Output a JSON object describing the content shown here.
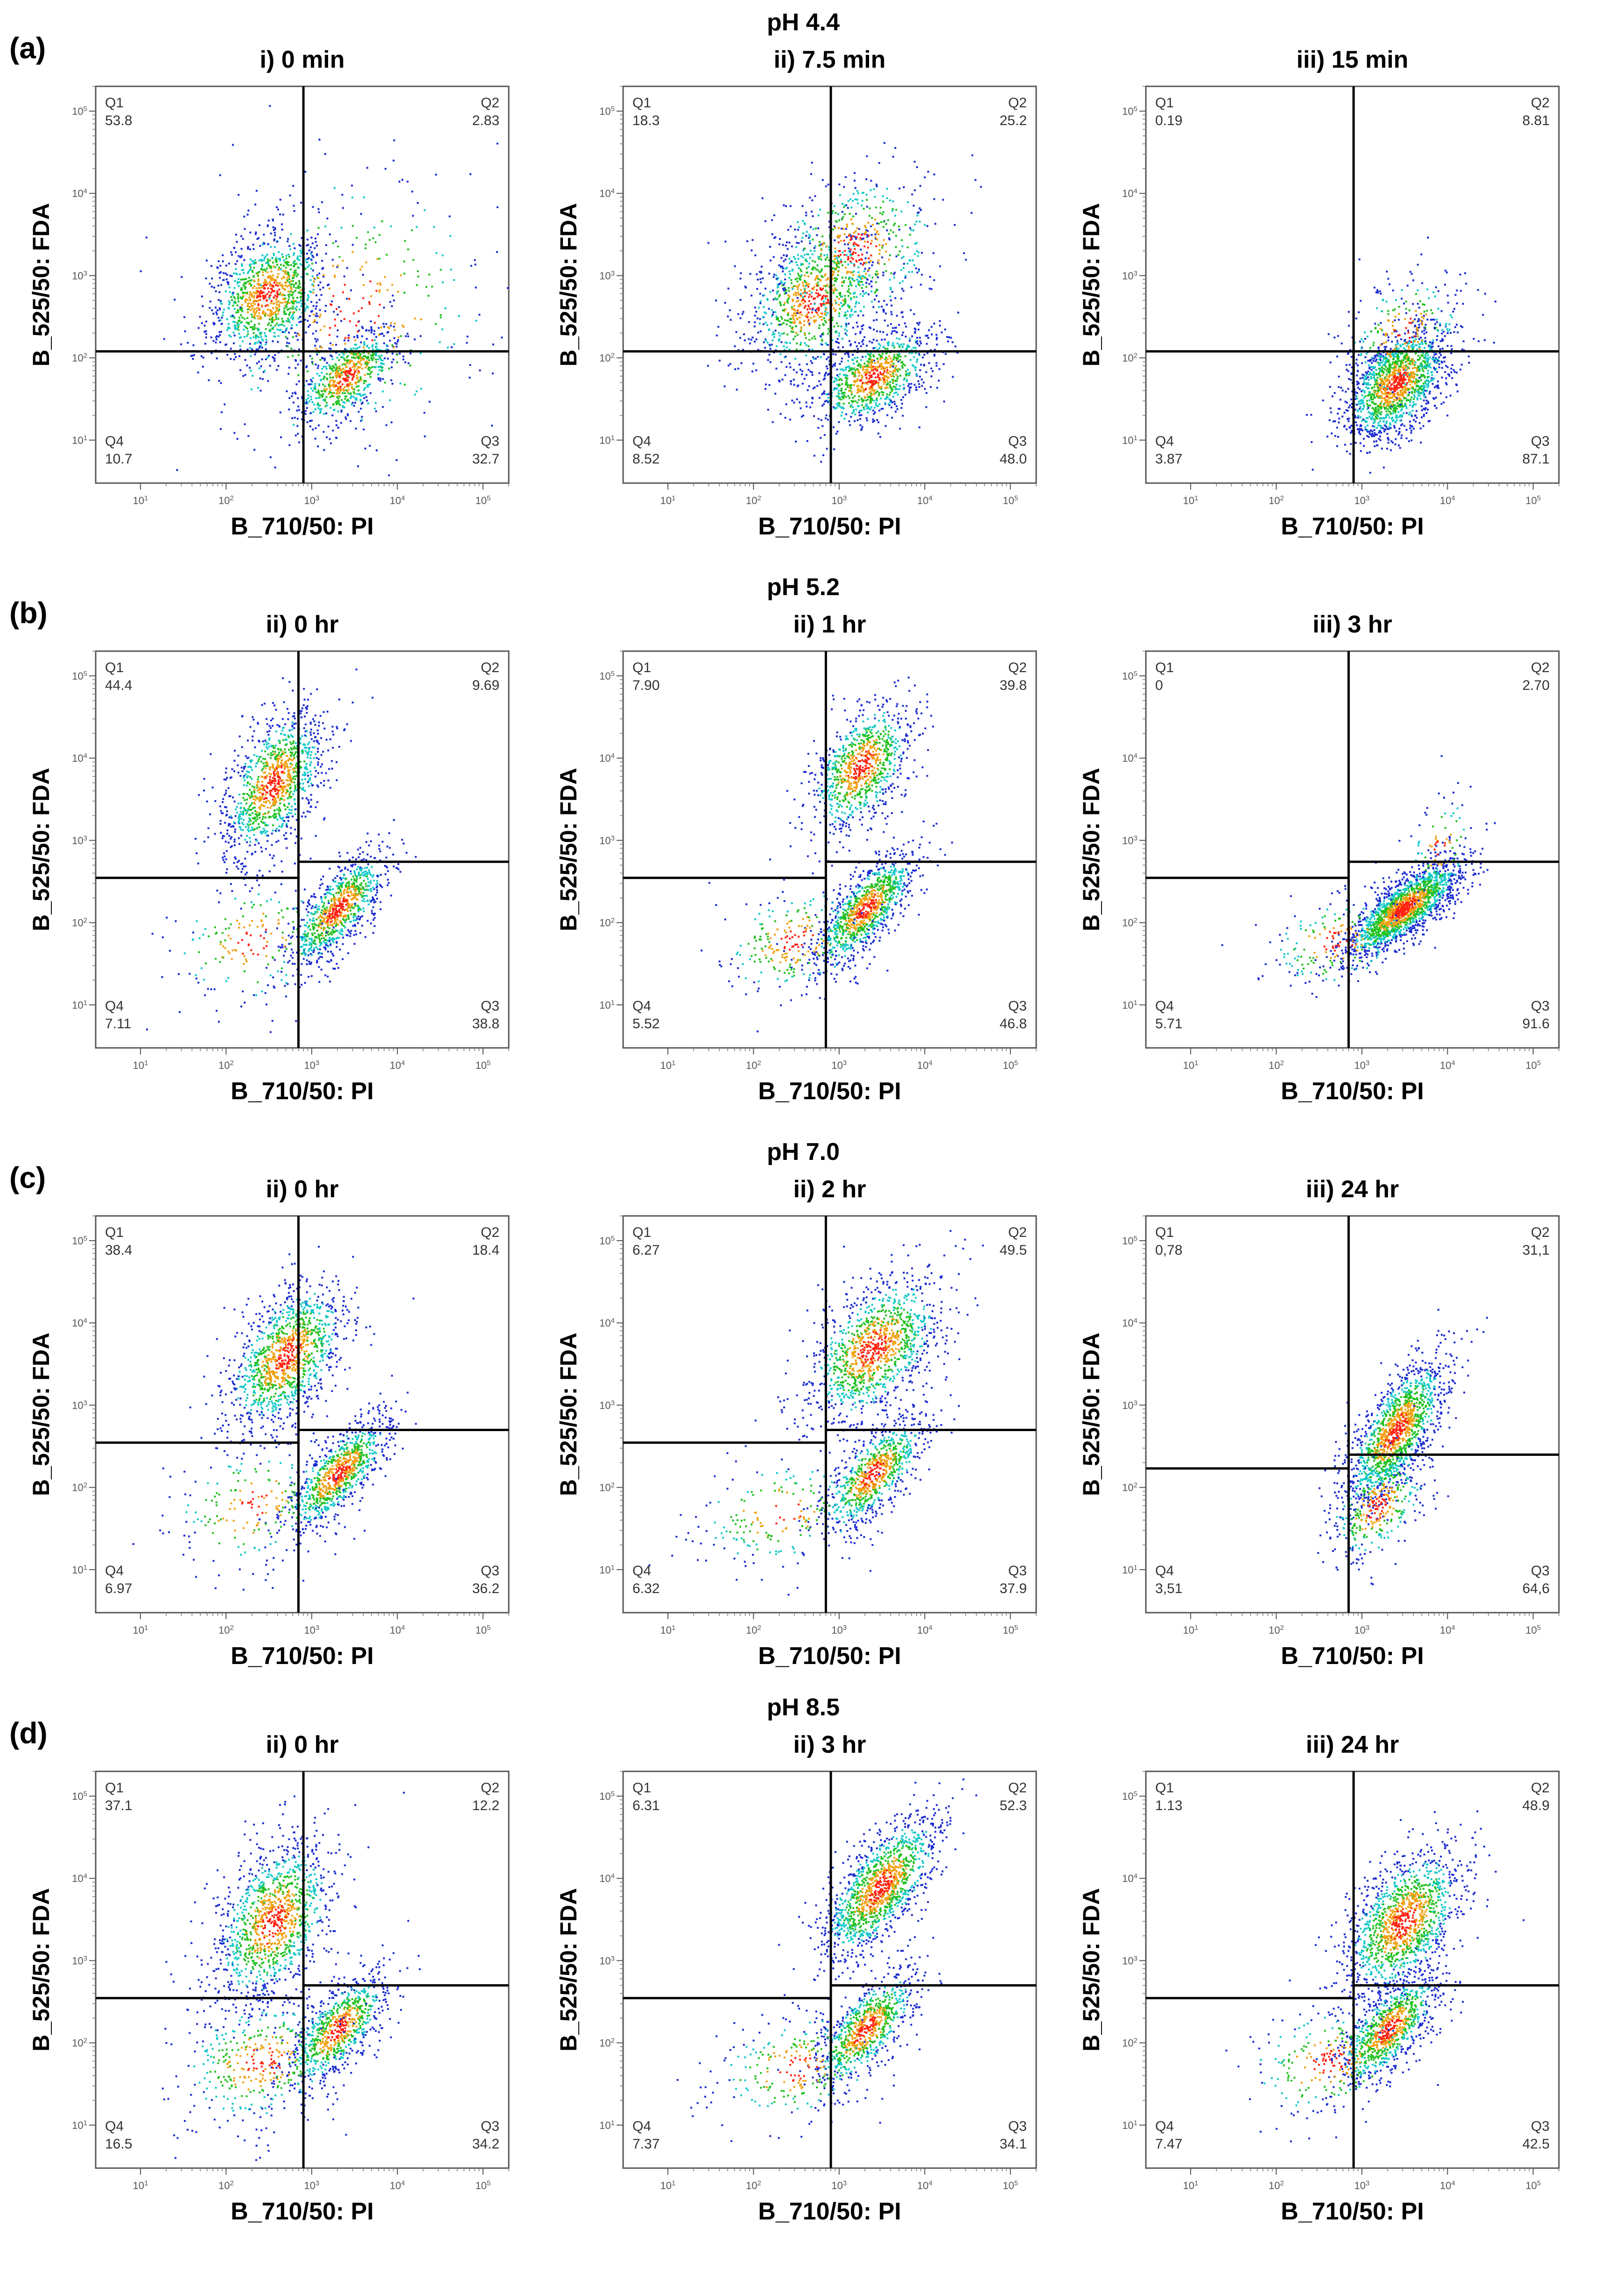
{
  "figure": {
    "x_axis_label": "B_710/50: PI",
    "y_axis_label": "B_525/50: FDA",
    "rows": [
      {
        "label": "(a)",
        "title": "pH 4.4"
      },
      {
        "label": "(b)",
        "title": "pH 5.2"
      },
      {
        "label": "(c)",
        "title": "pH 7.0"
      },
      {
        "label": "(d)",
        "title": "pH 8.5"
      }
    ],
    "colors": {
      "low": "#1a2bd0",
      "mid": "#14c8c8",
      "high": "#20c020",
      "peak": "#ff2010",
      "axis": "#000000"
    }
  },
  "chart_data": [
    {
      "type": "scatter",
      "row": "(a)",
      "title": "i) 0 min",
      "xlabel": "B_710/50: PI",
      "ylabel": "B_525/50: FDA",
      "scale": "log",
      "xlim": [
        3,
        200000
      ],
      "ylim": [
        3,
        200000
      ],
      "gates": {
        "x": 800,
        "y_left": 120,
        "y_right": 120
      },
      "quadrants": {
        "Q1": "53.8",
        "Q2": "2.83",
        "Q3": "32.7",
        "Q4": "10.7"
      },
      "populations": [
        {
          "x": [
            40,
            900
          ],
          "y": [
            50,
            8000
          ],
          "cx": 300,
          "cy": 600,
          "sx": 0.35,
          "sy": 0.4,
          "r": 0.3,
          "n": 1100
        },
        {
          "x": [
            700,
            20000
          ],
          "y": [
            10,
            400
          ],
          "cx": 2500,
          "cy": 60,
          "sx": 0.3,
          "sy": 0.3,
          "r": 0.6,
          "n": 700
        },
        {
          "cx": 3000,
          "cy": 400,
          "sx": 0.9,
          "sy": 0.9,
          "r": 0.1,
          "n": 350
        }
      ]
    },
    {
      "type": "scatter",
      "row": "(a)",
      "title": "ii) 7.5 min",
      "xlabel": "B_710/50: PI",
      "ylabel": "B_525/50: FDA",
      "scale": "log",
      "xlim": [
        3,
        200000
      ],
      "ylim": [
        3,
        200000
      ],
      "gates": {
        "x": 800,
        "y_left": 120,
        "y_right": 120
      },
      "quadrants": {
        "Q1": "18.3",
        "Q2": "25.2",
        "Q3": "48.0",
        "Q4": "8.52"
      },
      "populations": [
        {
          "cx": 500,
          "cy": 500,
          "sx": 0.4,
          "sy": 0.45,
          "r": 0.3,
          "n": 900
        },
        {
          "cx": 2500,
          "cy": 60,
          "sx": 0.35,
          "sy": 0.3,
          "r": 0.5,
          "n": 900
        },
        {
          "cx": 1500,
          "cy": 2000,
          "sx": 0.5,
          "sy": 0.5,
          "r": 0.2,
          "n": 500
        }
      ]
    },
    {
      "type": "scatter",
      "row": "(a)",
      "title": "iii) 15 min",
      "xlabel": "B_710/50: PI",
      "ylabel": "B_525/50: FDA",
      "scale": "log",
      "xlim": [
        3,
        200000
      ],
      "ylim": [
        3,
        200000
      ],
      "gates": {
        "x": 800,
        "y_left": 120,
        "y_right": 120
      },
      "quadrants": {
        "Q1": "0.19",
        "Q2": "8.81",
        "Q3": "87.1",
        "Q4": "3.87"
      },
      "populations": [
        {
          "cx": 2500,
          "cy": 50,
          "sx": 0.3,
          "sy": 0.35,
          "r": 0.5,
          "n": 1500
        },
        {
          "cx": 3000,
          "cy": 200,
          "sx": 0.35,
          "sy": 0.4,
          "r": 0.3,
          "n": 250
        }
      ]
    },
    {
      "type": "scatter",
      "row": "(b)",
      "title": "ii) 0 hr",
      "xlabel": "B_710/50: PI",
      "ylabel": "B_525/50: FDA",
      "scale": "log",
      "xlim": [
        3,
        200000
      ],
      "ylim": [
        3,
        200000
      ],
      "gates": {
        "x": 700,
        "y_left": 350,
        "y_right": 550
      },
      "quadrants": {
        "Q1": "44.4",
        "Q2": "9.69",
        "Q3": "38.8",
        "Q4": "7.11"
      },
      "populations": [
        {
          "cx": 350,
          "cy": 5000,
          "sx": 0.3,
          "sy": 0.45,
          "r": 0.5,
          "n": 1100
        },
        {
          "cx": 2000,
          "cy": 150,
          "sx": 0.3,
          "sy": 0.35,
          "r": 0.75,
          "n": 900
        },
        {
          "cx": 200,
          "cy": 60,
          "sx": 0.5,
          "sy": 0.4,
          "r": 0.2,
          "n": 200
        }
      ]
    },
    {
      "type": "scatter",
      "row": "(b)",
      "title": "ii) 1 hr",
      "xlabel": "B_710/50: PI",
      "ylabel": "B_525/50: FDA",
      "scale": "log",
      "xlim": [
        3,
        200000
      ],
      "ylim": [
        3,
        200000
      ],
      "gates": {
        "x": 700,
        "y_left": 350,
        "y_right": 550
      },
      "quadrants": {
        "Q1": "7.90",
        "Q2": "39.8",
        "Q3": "46.8",
        "Q4": "5.52"
      },
      "populations": [
        {
          "cx": 1800,
          "cy": 8000,
          "sx": 0.3,
          "sy": 0.4,
          "r": 0.5,
          "n": 900
        },
        {
          "cx": 2000,
          "cy": 150,
          "sx": 0.3,
          "sy": 0.35,
          "r": 0.75,
          "n": 1000
        },
        {
          "cx": 300,
          "cy": 60,
          "sx": 0.45,
          "sy": 0.35,
          "r": 0.2,
          "n": 250
        }
      ]
    },
    {
      "type": "scatter",
      "row": "(b)",
      "title": "iii) 3 hr",
      "xlabel": "B_710/50: PI",
      "ylabel": "B_525/50: FDA",
      "scale": "log",
      "xlim": [
        3,
        200000
      ],
      "ylim": [
        3,
        200000
      ],
      "gates": {
        "x": 700,
        "y_left": 350,
        "y_right": 550
      },
      "quadrants": {
        "Q1": "0",
        "Q2": "2.70",
        "Q3": "91.6",
        "Q4": "5.71"
      },
      "populations": [
        {
          "cx": 3000,
          "cy": 150,
          "sx": 0.35,
          "sy": 0.3,
          "r": 0.8,
          "n": 1700
        },
        {
          "cx": 500,
          "cy": 60,
          "sx": 0.45,
          "sy": 0.3,
          "r": 0.3,
          "n": 200
        },
        {
          "cx": 8000,
          "cy": 800,
          "sx": 0.2,
          "sy": 0.35,
          "r": 0.3,
          "n": 100
        }
      ]
    },
    {
      "type": "scatter",
      "row": "(c)",
      "title": "ii) 0 hr",
      "xlabel": "B_710/50: PI",
      "ylabel": "B_525/50: FDA",
      "scale": "log",
      "xlim": [
        3,
        200000
      ],
      "ylim": [
        3,
        200000
      ],
      "gates": {
        "x": 700,
        "y_left": 350,
        "y_right": 500
      },
      "quadrants": {
        "Q1": "38.4",
        "Q2": "18.4",
        "Q3": "36.2",
        "Q4": "6.97"
      },
      "populations": [
        {
          "cx": 500,
          "cy": 4000,
          "sx": 0.35,
          "sy": 0.45,
          "r": 0.5,
          "n": 1200
        },
        {
          "cx": 2000,
          "cy": 150,
          "sx": 0.3,
          "sy": 0.35,
          "r": 0.75,
          "n": 900
        },
        {
          "cx": 200,
          "cy": 60,
          "sx": 0.5,
          "sy": 0.4,
          "r": 0.2,
          "n": 200
        }
      ]
    },
    {
      "type": "scatter",
      "row": "(c)",
      "title": "ii) 2 hr",
      "xlabel": "B_710/50: PI",
      "ylabel": "B_525/50: FDA",
      "scale": "log",
      "xlim": [
        3,
        200000
      ],
      "ylim": [
        3,
        200000
      ],
      "gates": {
        "x": 700,
        "y_left": 350,
        "y_right": 500
      },
      "quadrants": {
        "Q1": "6.27",
        "Q2": "49.5",
        "Q3": "37.9",
        "Q4": "6.32"
      },
      "populations": [
        {
          "cx": 2500,
          "cy": 5000,
          "sx": 0.4,
          "sy": 0.45,
          "r": 0.5,
          "n": 1200
        },
        {
          "cx": 2500,
          "cy": 150,
          "sx": 0.3,
          "sy": 0.35,
          "r": 0.7,
          "n": 800
        },
        {
          "cx": 200,
          "cy": 50,
          "sx": 0.5,
          "sy": 0.35,
          "r": 0.2,
          "n": 200
        }
      ]
    },
    {
      "type": "scatter",
      "row": "(c)",
      "title": "iii) 24 hr",
      "xlabel": "B_710/50: PI",
      "ylabel": "B_525/50: FDA",
      "scale": "log",
      "xlim": [
        3,
        200000
      ],
      "ylim": [
        3,
        200000
      ],
      "gates": {
        "x": 700,
        "y_left": 170,
        "y_right": 250
      },
      "quadrants": {
        "Q1": "0,78",
        "Q2": "31,1",
        "Q3": "64,6",
        "Q4": "3,51"
      },
      "populations": [
        {
          "cx": 2500,
          "cy": 500,
          "sx": 0.3,
          "sy": 0.45,
          "r": 0.7,
          "n": 1400
        },
        {
          "cx": 1500,
          "cy": 60,
          "sx": 0.3,
          "sy": 0.35,
          "r": 0.5,
          "n": 350
        }
      ]
    },
    {
      "type": "scatter",
      "row": "(d)",
      "title": "ii) 0 hr",
      "xlabel": "B_710/50: PI",
      "ylabel": "B_525/50: FDA",
      "scale": "log",
      "xlim": [
        3,
        200000
      ],
      "ylim": [
        3,
        200000
      ],
      "gates": {
        "x": 800,
        "y_left": 350,
        "y_right": 500
      },
      "quadrants": {
        "Q1": "37.1",
        "Q2": "12.2",
        "Q3": "34.2",
        "Q4": "16.5"
      },
      "populations": [
        {
          "cx": 350,
          "cy": 3000,
          "sx": 0.35,
          "sy": 0.5,
          "r": 0.4,
          "n": 1200
        },
        {
          "cx": 2000,
          "cy": 150,
          "sx": 0.3,
          "sy": 0.35,
          "r": 0.7,
          "n": 800
        },
        {
          "cx": 250,
          "cy": 60,
          "sx": 0.5,
          "sy": 0.4,
          "r": 0.2,
          "n": 400
        }
      ]
    },
    {
      "type": "scatter",
      "row": "(d)",
      "title": "ii) 3 hr",
      "xlabel": "B_710/50: PI",
      "ylabel": "B_525/50: FDA",
      "scale": "log",
      "xlim": [
        3,
        200000
      ],
      "ylim": [
        3,
        200000
      ],
      "gates": {
        "x": 800,
        "y_left": 350,
        "y_right": 500
      },
      "quadrants": {
        "Q1": "6.31",
        "Q2": "52.3",
        "Q3": "34.1",
        "Q4": "7.37"
      },
      "populations": [
        {
          "cx": 3000,
          "cy": 8000,
          "sx": 0.35,
          "sy": 0.45,
          "r": 0.7,
          "n": 1300
        },
        {
          "cx": 2000,
          "cy": 150,
          "sx": 0.3,
          "sy": 0.35,
          "r": 0.7,
          "n": 800
        },
        {
          "cx": 300,
          "cy": 50,
          "sx": 0.5,
          "sy": 0.35,
          "r": 0.2,
          "n": 250
        }
      ]
    },
    {
      "type": "scatter",
      "row": "(d)",
      "title": "iii) 24 hr",
      "xlabel": "B_710/50: PI",
      "ylabel": "B_525/50: FDA",
      "scale": "log",
      "xlim": [
        3,
        200000
      ],
      "ylim": [
        3,
        200000
      ],
      "gates": {
        "x": 800,
        "y_left": 350,
        "y_right": 500
      },
      "quadrants": {
        "Q1": "1.13",
        "Q2": "48.9",
        "Q3": "42.5",
        "Q4": "7.47"
      },
      "populations": [
        {
          "cx": 3000,
          "cy": 3000,
          "sx": 0.35,
          "sy": 0.45,
          "r": 0.5,
          "n": 1300
        },
        {
          "cx": 2000,
          "cy": 150,
          "sx": 0.3,
          "sy": 0.35,
          "r": 0.7,
          "n": 900
        },
        {
          "cx": 400,
          "cy": 60,
          "sx": 0.5,
          "sy": 0.35,
          "r": 0.2,
          "n": 250
        }
      ]
    }
  ]
}
